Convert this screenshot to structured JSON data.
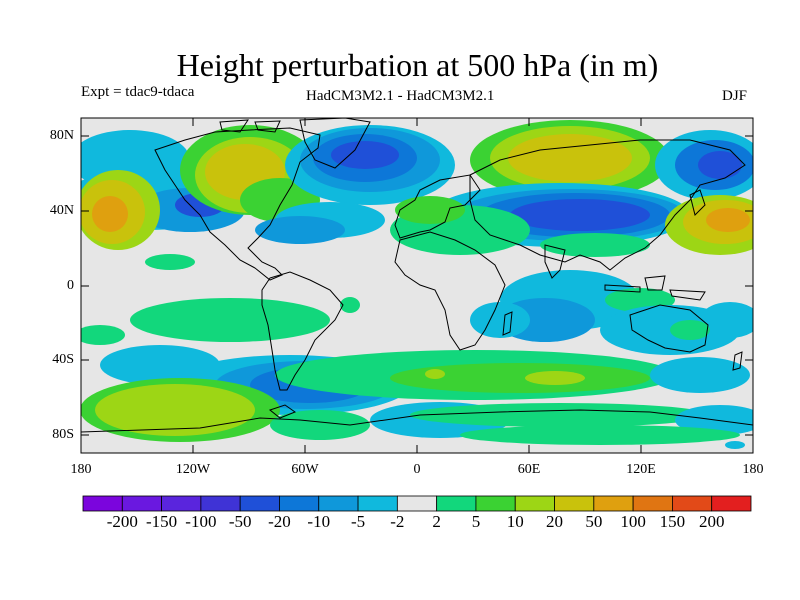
{
  "title": "Height perturbation at 500 hPa (in m)",
  "experiment": "Expt = tdac9-tdaca",
  "models": "HadCM3M2.1 - HadCM3M2.1",
  "season": "DJF",
  "axes": {
    "lat_labels": [
      "80N",
      "40N",
      "0",
      "40S",
      "80S"
    ],
    "lon_labels": [
      "180",
      "120W",
      "60W",
      "0",
      "60E",
      "120E",
      "180"
    ]
  },
  "colorbar": {
    "labels": [
      "-200",
      "-150",
      "-100",
      "-50",
      "-20",
      "-10",
      "-5",
      "-2",
      "2",
      "5",
      "10",
      "20",
      "50",
      "100",
      "150",
      "200"
    ],
    "colors": [
      "#7b05dd",
      "#6a18e0",
      "#5a25dd",
      "#3f33d6",
      "#1f50d8",
      "#0d77d8",
      "#0f98da",
      "#10b9dd",
      "#e6e6e6",
      "#12d77c",
      "#3bd233",
      "#9dd615",
      "#c9c20c",
      "#dfa00f",
      "#e07512",
      "#e24a18",
      "#e31f1f"
    ]
  },
  "colors": {
    "neutral": "#e6e6e6",
    "coast": "#000000"
  }
}
